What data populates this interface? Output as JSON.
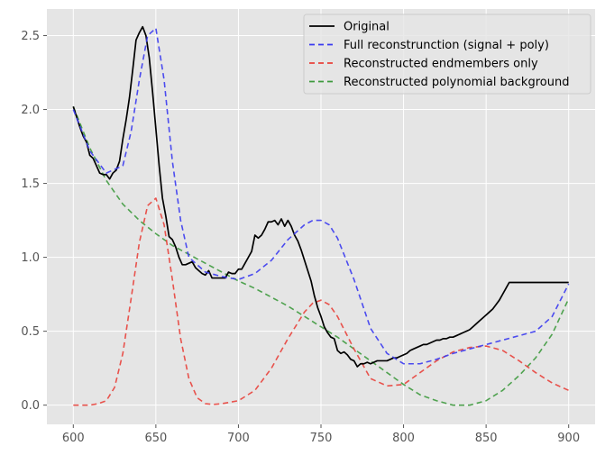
{
  "chart_data": {
    "type": "line",
    "title": "",
    "xlabel": "",
    "ylabel": "",
    "xlim": [
      584,
      916
    ],
    "ylim": [
      -0.13,
      2.68
    ],
    "xticks": [
      "600",
      "650",
      "700",
      "750",
      "800",
      "850",
      "900"
    ],
    "yticks": [
      "0.0",
      "0.5",
      "1.0",
      "1.5",
      "2.0",
      "2.5"
    ],
    "grid": true,
    "legend_position": "top-right",
    "series": [
      {
        "name": "Original",
        "style": "solid",
        "color": "#000000",
        "x": [
          600,
          602,
          604,
          606,
          608,
          610,
          612,
          614,
          616,
          618,
          620,
          622,
          624,
          626,
          628,
          630,
          632,
          634,
          636,
          638,
          640,
          642,
          644,
          646,
          648,
          650,
          652,
          654,
          656,
          658,
          660,
          662,
          664,
          666,
          668,
          670,
          672,
          674,
          676,
          678,
          680,
          682,
          684,
          686,
          688,
          690,
          692,
          694,
          696,
          698,
          700,
          702,
          704,
          706,
          708,
          710,
          712,
          714,
          716,
          718,
          720,
          722,
          724,
          726,
          728,
          730,
          732,
          734,
          736,
          738,
          740,
          742,
          744,
          746,
          748,
          750,
          752,
          754,
          756,
          758,
          760,
          762,
          764,
          766,
          768,
          770,
          772,
          774,
          776,
          778,
          780,
          782,
          784,
          786,
          788,
          790,
          792,
          794,
          796,
          798,
          800,
          802,
          804,
          806,
          808,
          810,
          812,
          814,
          816,
          818,
          820,
          822,
          824,
          826,
          828,
          830,
          832,
          834,
          836,
          838,
          840,
          842,
          844,
          846,
          848,
          850,
          852,
          854,
          856,
          858,
          860,
          862,
          864,
          866,
          868,
          870,
          872,
          874,
          876,
          878,
          880,
          882,
          884,
          886,
          888,
          890,
          892,
          894,
          896,
          898,
          900
        ],
        "y": [
          2.02,
          1.95,
          1.88,
          1.82,
          1.78,
          1.69,
          1.67,
          1.62,
          1.57,
          1.56,
          1.56,
          1.53,
          1.57,
          1.59,
          1.65,
          1.8,
          1.93,
          2.08,
          2.27,
          2.47,
          2.52,
          2.56,
          2.5,
          2.35,
          2.12,
          1.87,
          1.62,
          1.4,
          1.28,
          1.14,
          1.12,
          1.07,
          1.0,
          0.95,
          0.95,
          0.96,
          0.97,
          0.93,
          0.91,
          0.89,
          0.88,
          0.91,
          0.86,
          0.86,
          0.86,
          0.86,
          0.86,
          0.9,
          0.89,
          0.89,
          0.92,
          0.92,
          0.96,
          1.0,
          1.04,
          1.15,
          1.13,
          1.15,
          1.19,
          1.24,
          1.24,
          1.25,
          1.22,
          1.26,
          1.21,
          1.25,
          1.21,
          1.15,
          1.11,
          1.05,
          0.98,
          0.91,
          0.84,
          0.74,
          0.66,
          0.6,
          0.53,
          0.49,
          0.46,
          0.45,
          0.37,
          0.35,
          0.36,
          0.34,
          0.31,
          0.3,
          0.26,
          0.28,
          0.28,
          0.29,
          0.28,
          0.29,
          0.3,
          0.3,
          0.3,
          0.3,
          0.31,
          0.32,
          0.32,
          0.33,
          0.34,
          0.35,
          0.37,
          0.38,
          0.39,
          0.4,
          0.41,
          0.41,
          0.42,
          0.43,
          0.44,
          0.44,
          0.45,
          0.45,
          0.46,
          0.46,
          0.47,
          0.48,
          0.49,
          0.5,
          0.51,
          0.53,
          0.55,
          0.57,
          0.59,
          0.61,
          0.63,
          0.65,
          0.68,
          0.71,
          0.75,
          0.79,
          0.83,
          0.83,
          0.83,
          0.83,
          0.83,
          0.83,
          0.83,
          0.83,
          0.83,
          0.83,
          0.83,
          0.83,
          0.83,
          0.83,
          0.83,
          0.83,
          0.83,
          0.83,
          0.83
        ]
      },
      {
        "name": "Full reconstrunction (signal + poly)",
        "style": "dashed",
        "color": "#3a3af0",
        "x": [
          600,
          610,
          620,
          630,
          635,
          640,
          645,
          650,
          655,
          660,
          665,
          670,
          680,
          690,
          700,
          710,
          720,
          730,
          740,
          745,
          750,
          755,
          760,
          770,
          780,
          790,
          800,
          810,
          820,
          830,
          840,
          850,
          860,
          870,
          880,
          890,
          900
        ],
        "y": [
          2.0,
          1.72,
          1.57,
          1.62,
          1.85,
          2.2,
          2.5,
          2.55,
          2.2,
          1.65,
          1.25,
          1.0,
          0.9,
          0.87,
          0.85,
          0.89,
          0.98,
          1.12,
          1.22,
          1.25,
          1.25,
          1.22,
          1.13,
          0.85,
          0.52,
          0.35,
          0.28,
          0.28,
          0.31,
          0.35,
          0.38,
          0.41,
          0.44,
          0.47,
          0.5,
          0.6,
          0.82
        ]
      },
      {
        "name": "Reconstructed endmembers only",
        "style": "dashed",
        "color": "#e8413b",
        "x": [
          600,
          610,
          615,
          620,
          625,
          630,
          635,
          640,
          645,
          650,
          655,
          660,
          665,
          670,
          675,
          680,
          685,
          690,
          700,
          710,
          720,
          730,
          740,
          745,
          750,
          755,
          760,
          770,
          780,
          790,
          800,
          810,
          820,
          830,
          840,
          850,
          860,
          870,
          880,
          890,
          900
        ],
        "y": [
          0.0,
          0.0,
          0.01,
          0.03,
          0.12,
          0.35,
          0.72,
          1.1,
          1.35,
          1.4,
          1.22,
          0.85,
          0.45,
          0.18,
          0.05,
          0.01,
          0.005,
          0.01,
          0.03,
          0.1,
          0.25,
          0.45,
          0.63,
          0.69,
          0.71,
          0.68,
          0.6,
          0.38,
          0.18,
          0.13,
          0.14,
          0.22,
          0.3,
          0.36,
          0.39,
          0.4,
          0.37,
          0.3,
          0.22,
          0.15,
          0.1
        ]
      },
      {
        "name": "Reconstructed polynomial background",
        "style": "dashed",
        "color": "#3e9a3e",
        "x": [
          600,
          610,
          620,
          630,
          640,
          650,
          660,
          670,
          680,
          690,
          700,
          710,
          720,
          730,
          740,
          750,
          760,
          770,
          780,
          790,
          800,
          810,
          820,
          830,
          840,
          850,
          860,
          870,
          880,
          890,
          900
        ],
        "y": [
          2.02,
          1.74,
          1.52,
          1.36,
          1.25,
          1.16,
          1.08,
          1.02,
          0.96,
          0.9,
          0.84,
          0.79,
          0.73,
          0.67,
          0.6,
          0.53,
          0.46,
          0.38,
          0.3,
          0.22,
          0.14,
          0.07,
          0.03,
          0.0,
          0.0,
          0.03,
          0.1,
          0.2,
          0.32,
          0.48,
          0.72
        ]
      }
    ]
  }
}
